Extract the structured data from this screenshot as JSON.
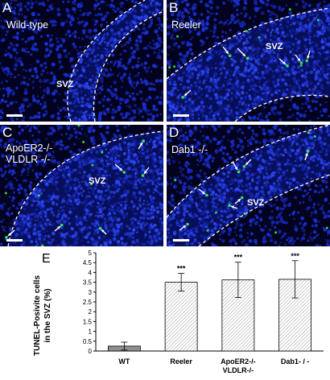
{
  "panels": [
    {
      "letter": "A",
      "title_lines": [
        "Wild-type"
      ],
      "svz": "SVZ"
    },
    {
      "letter": "B",
      "title_lines": [
        "Reeler"
      ],
      "svz": "SVZ"
    },
    {
      "letter": "C",
      "title_lines": [
        "ApoER2-/-",
        "VLDLR -/-"
      ],
      "svz": "SVZ"
    },
    {
      "letter": "D",
      "title_lines": [
        "Dab1 -/-"
      ],
      "svz": "SVZ"
    }
  ],
  "colors": {
    "nuclei": "#1a2fd0",
    "background": "#030320",
    "tunel": "#35e85a",
    "bar_wt": "#8f8f8f"
  },
  "chart_data": {
    "type": "bar",
    "panel_label": "E",
    "ylabel_lines": [
      "TUNEL-Posivite cells",
      "in the SVZ (%)"
    ],
    "categories": [
      "WT",
      "Reeler",
      "ApoER2-/-",
      "Dab1- / -"
    ],
    "category_sublabels": [
      "",
      "",
      "VLDLR-/-",
      ""
    ],
    "values": [
      0.25,
      3.5,
      3.62,
      3.65
    ],
    "errors": [
      0.2,
      0.45,
      0.9,
      0.95
    ],
    "significance": [
      "",
      "***",
      "***",
      "***"
    ],
    "yticks": [
      "0",
      "0.5",
      "1",
      "1.5",
      "2",
      "2.5",
      "3",
      "3.5",
      "4",
      "4.5",
      "5"
    ],
    "ylim": [
      0,
      5
    ]
  }
}
